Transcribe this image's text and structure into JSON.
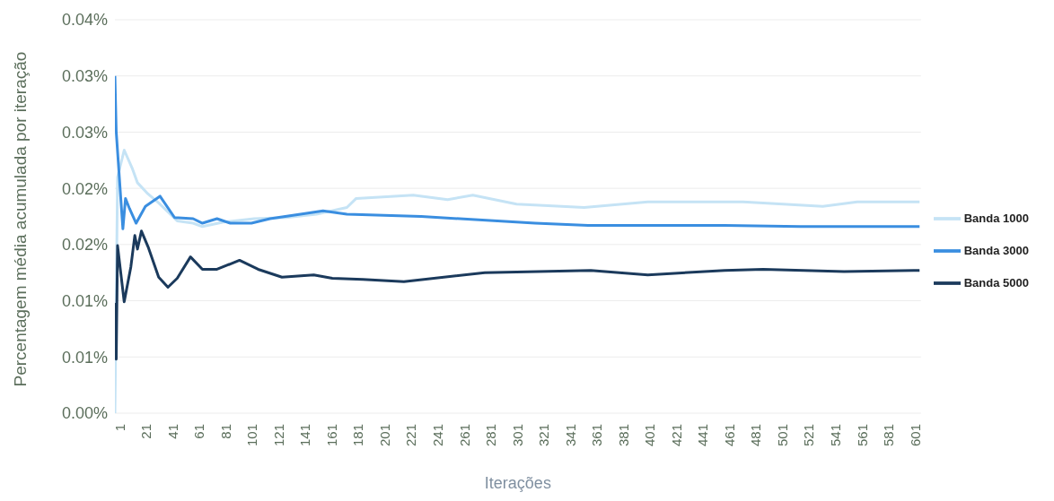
{
  "chart_data": {
    "type": "line",
    "xlabel": "Iterações",
    "ylabel": "Percentagem média acumulada por iteração",
    "xlim": [
      1,
      609
    ],
    "xticks": [
      1,
      21,
      41,
      61,
      81,
      101,
      121,
      141,
      161,
      181,
      201,
      221,
      241,
      261,
      281,
      301,
      321,
      341,
      361,
      381,
      401,
      421,
      441,
      461,
      481,
      501,
      521,
      541,
      561,
      581,
      601
    ],
    "ylim": [
      0,
      0.035
    ],
    "yticks": [
      {
        "value": 0,
        "label": "0.00%"
      },
      {
        "value": 0.005,
        "label": "0.01%"
      },
      {
        "value": 0.01,
        "label": "0.01%"
      },
      {
        "value": 0.015,
        "label": "0.02%"
      },
      {
        "value": 0.02,
        "label": "0.02%"
      },
      {
        "value": 0.025,
        "label": "0.03%"
      },
      {
        "value": 0.03,
        "label": "0.03%"
      },
      {
        "value": 0.035,
        "label": "0.04%"
      }
    ],
    "grid": "y",
    "legend": "right",
    "marker": "none",
    "line_style": "solid",
    "series": [
      {
        "name": "Banda 1000",
        "color": "#c5e3f5",
        "x": [
          1,
          3,
          8,
          14,
          18,
          26,
          34,
          48,
          60,
          67,
          83,
          106,
          130,
          153,
          176,
          183,
          226,
          252,
          271,
          304,
          355,
          403,
          475,
          535,
          561,
          608
        ],
        "values": [
          0,
          0.021,
          0.0234,
          0.0218,
          0.0205,
          0.0195,
          0.0187,
          0.0171,
          0.0169,
          0.0166,
          0.017,
          0.0173,
          0.0174,
          0.0177,
          0.0183,
          0.0191,
          0.0194,
          0.019,
          0.0194,
          0.0186,
          0.0183,
          0.0188,
          0.0188,
          0.0184,
          0.0188,
          0.0188
        ]
      },
      {
        "name": "Banda 3000",
        "color": "#3a8ee0",
        "x": [
          1,
          2,
          7,
          9,
          12,
          17,
          24,
          35,
          46,
          60,
          67,
          78,
          88,
          104,
          118,
          141,
          158,
          176,
          232,
          318,
          358,
          461,
          518,
          608
        ],
        "values": [
          0.03,
          0.025,
          0.0164,
          0.0191,
          0.0182,
          0.0169,
          0.0184,
          0.0193,
          0.0174,
          0.0173,
          0.0169,
          0.0173,
          0.0169,
          0.0169,
          0.0173,
          0.0177,
          0.018,
          0.0177,
          0.0175,
          0.0169,
          0.0167,
          0.0167,
          0.0166,
          0.0166
        ]
      },
      {
        "name": "Banda 5000",
        "color": "#1b3a5c",
        "x": [
          1,
          2,
          3,
          8,
          13,
          16,
          18,
          21,
          26,
          34,
          41,
          48,
          58,
          67,
          78,
          95,
          109,
          127,
          151,
          165,
          188,
          219,
          280,
          360,
          403,
          461,
          490,
          551,
          608
        ],
        "values": [
          0.0098,
          0.0048,
          0.0149,
          0.0099,
          0.013,
          0.0158,
          0.0146,
          0.0162,
          0.0148,
          0.0121,
          0.0112,
          0.012,
          0.0139,
          0.0128,
          0.0128,
          0.0136,
          0.0128,
          0.0121,
          0.0123,
          0.012,
          0.0119,
          0.0117,
          0.0125,
          0.0127,
          0.0123,
          0.0127,
          0.0128,
          0.0126,
          0.0127
        ]
      }
    ]
  }
}
